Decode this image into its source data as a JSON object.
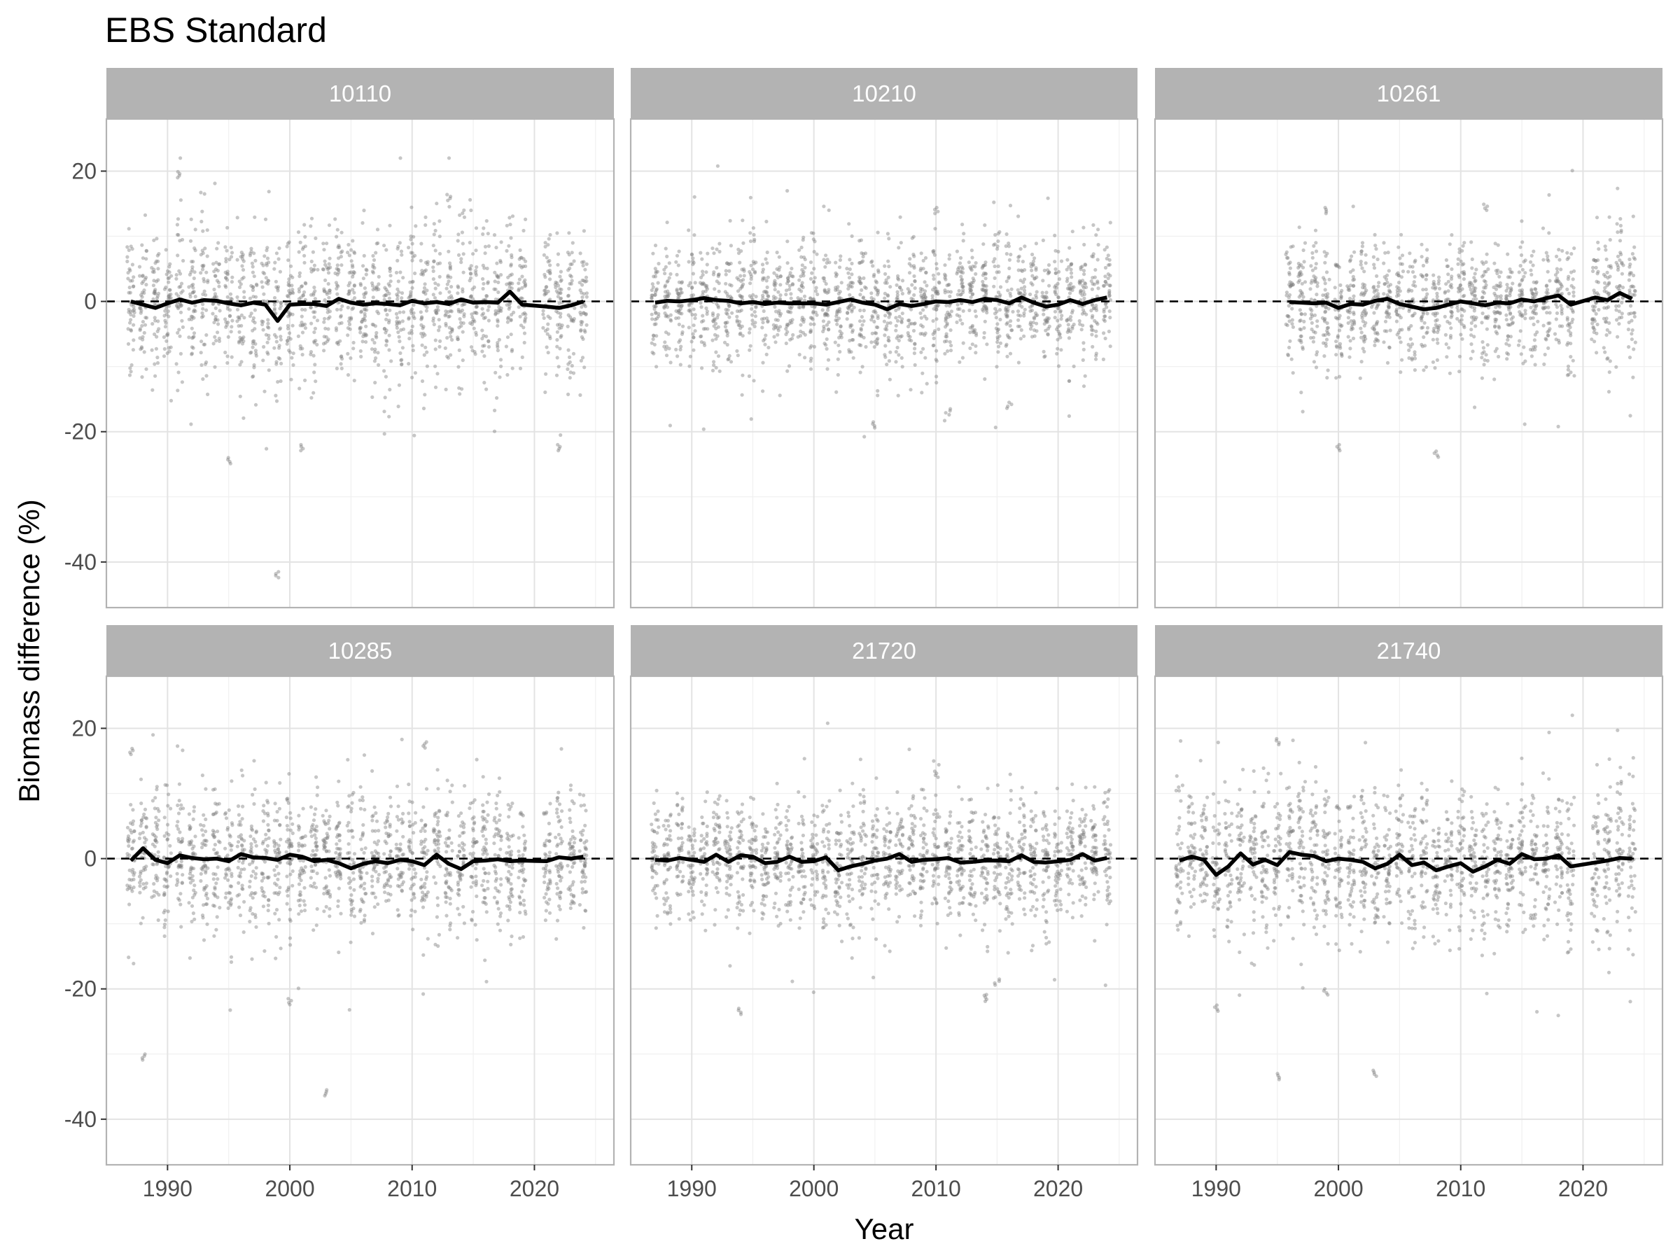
{
  "chart_data": {
    "type": "scatter",
    "title": "EBS Standard",
    "xlabel": "Year",
    "ylabel": "Biomass difference (%)",
    "xlim": [
      1985,
      2026.5
    ],
    "ylim": [
      -47,
      28
    ],
    "x_ticks": [
      1990,
      2000,
      2010,
      2020
    ],
    "y_ticks": [
      20,
      0,
      -20,
      -40
    ],
    "reference_line": {
      "y": 0,
      "style": "dashed"
    },
    "grid": true,
    "facet_layout": "2 rows x 3 columns",
    "point_color": "#808080",
    "line_color": "#000000",
    "panels": [
      {
        "label": "10110",
        "years": [
          1987,
          2024
        ],
        "missing_years": [
          2020
        ],
        "mean_series": {
          "x": [
            1987,
            1988,
            1989,
            1990,
            1991,
            1992,
            1993,
            1994,
            1995,
            1996,
            1997,
            1998,
            1999,
            2000,
            2001,
            2002,
            2003,
            2004,
            2005,
            2006,
            2007,
            2008,
            2009,
            2010,
            2011,
            2012,
            2013,
            2014,
            2015,
            2016,
            2017,
            2018,
            2019,
            2021,
            2022,
            2023,
            2024
          ],
          "y": [
            0,
            -0.5,
            -1,
            -0.3,
            0.3,
            -0.2,
            0.2,
            0.1,
            -0.3,
            -0.6,
            -0.2,
            -0.5,
            -3,
            -0.5,
            -0.4,
            -0.4,
            -0.7,
            0.4,
            -0.2,
            -0.5,
            -0.3,
            -0.4,
            -0.6,
            0.1,
            -0.3,
            -0.1,
            -0.4,
            0.3,
            -0.2,
            -0.1,
            -0.2,
            1.5,
            -0.5,
            -0.8,
            -1,
            -0.6,
            0
          ]
        },
        "points": {
          "spread": 5.5,
          "extremes": {
            "1999": -41.5,
            "1991": 19,
            "1995": -24,
            "2001": -22,
            "2013": 15.5,
            "2022": -22
          }
        }
      },
      {
        "label": "10210",
        "years": [
          1987,
          2024
        ],
        "missing_years": [],
        "mean_series": {
          "x": [
            1987,
            1988,
            1989,
            1990,
            1991,
            1992,
            1993,
            1994,
            1995,
            1996,
            1997,
            1998,
            1999,
            2000,
            2001,
            2002,
            2003,
            2004,
            2005,
            2006,
            2007,
            2008,
            2009,
            2010,
            2011,
            2012,
            2013,
            2014,
            2015,
            2016,
            2017,
            2018,
            2019,
            2020,
            2021,
            2022,
            2023,
            2024
          ],
          "y": [
            -0.2,
            0.1,
            0,
            0.2,
            0.5,
            0.2,
            0.1,
            -0.3,
            -0.1,
            -0.4,
            -0.2,
            -0.3,
            -0.3,
            -0.3,
            -0.5,
            -0.1,
            0.3,
            -0.2,
            -0.5,
            -1.2,
            -0.4,
            -0.7,
            -0.4,
            0,
            -0.1,
            0.2,
            -0.1,
            0.4,
            0.2,
            -0.3,
            0.6,
            -0.2,
            -0.8,
            -0.5,
            0.2,
            -0.4,
            0.2,
            0.6
          ]
        },
        "points": {
          "spread": 4.5,
          "extremes": {
            "2005": -18.5,
            "2010": 13.5,
            "2011": -16.5,
            "2016": -15.5
          }
        }
      },
      {
        "label": "10261",
        "years": [
          1996,
          2024
        ],
        "missing_years": [
          2020
        ],
        "mean_series": {
          "x": [
            1996,
            1997,
            1998,
            1999,
            2000,
            2001,
            2002,
            2003,
            2004,
            2005,
            2006,
            2007,
            2008,
            2009,
            2010,
            2011,
            2012,
            2013,
            2014,
            2015,
            2016,
            2017,
            2018,
            2019,
            2021,
            2022,
            2023,
            2024
          ],
          "y": [
            -0.1,
            -0.2,
            -0.3,
            -0.2,
            -1,
            -0.4,
            -0.5,
            0.1,
            0.4,
            -0.4,
            -0.8,
            -1.2,
            -1,
            -0.5,
            0,
            -0.3,
            -0.6,
            -0.2,
            -0.3,
            0.3,
            0,
            0.5,
            0.9,
            -0.5,
            0.6,
            0.2,
            1.3,
            0.4
          ]
        },
        "points": {
          "spread": 4.5,
          "extremes": {
            "2000": -22,
            "2008": -23,
            "2012": 14,
            "1999": 13.5
          }
        }
      },
      {
        "label": "10285",
        "years": [
          1987,
          2024
        ],
        "missing_years": [
          2020
        ],
        "mean_series": {
          "x": [
            1987,
            1988,
            1989,
            1990,
            1991,
            1992,
            1993,
            1994,
            1995,
            1996,
            1997,
            1998,
            1999,
            2000,
            2001,
            2002,
            2003,
            2004,
            2005,
            2006,
            2007,
            2008,
            2009,
            2010,
            2011,
            2012,
            2013,
            2014,
            2015,
            2016,
            2017,
            2018,
            2019,
            2021,
            2022,
            2023,
            2024
          ],
          "y": [
            -0.3,
            1.6,
            -0.2,
            -0.7,
            0.5,
            0.1,
            -0.1,
            0,
            -0.4,
            0.7,
            0.2,
            0.1,
            -0.2,
            0.6,
            0.3,
            -0.4,
            -0.2,
            -0.7,
            -1.5,
            -0.8,
            -0.4,
            -0.7,
            -0.2,
            -0.4,
            -1,
            0.6,
            -0.8,
            -1.6,
            -0.4,
            -0.3,
            -0.1,
            -0.4,
            -0.3,
            -0.4,
            0.2,
            0,
            0.3
          ]
        },
        "points": {
          "spread": 5,
          "extremes": {
            "1988": -30,
            "2003": -35.5,
            "2000": -21.5,
            "2011": 17,
            "1987": 16
          }
        }
      },
      {
        "label": "21720",
        "years": [
          1987,
          2024
        ],
        "missing_years": [],
        "mean_series": {
          "x": [
            1987,
            1988,
            1989,
            1990,
            1991,
            1992,
            1993,
            1994,
            1995,
            1996,
            1997,
            1998,
            1999,
            2000,
            2001,
            2002,
            2003,
            2004,
            2005,
            2006,
            2007,
            2008,
            2009,
            2010,
            2011,
            2012,
            2013,
            2014,
            2015,
            2016,
            2017,
            2018,
            2019,
            2020,
            2021,
            2022,
            2023,
            2024
          ],
          "y": [
            -0.2,
            -0.3,
            0.1,
            -0.2,
            -0.5,
            0.6,
            -0.5,
            0.5,
            0.3,
            -0.7,
            -0.5,
            0.3,
            -0.5,
            -0.4,
            0.2,
            -1.8,
            -1.2,
            -0.8,
            -0.3,
            0,
            0.7,
            -0.5,
            -0.2,
            -0.1,
            0.1,
            -0.6,
            -0.5,
            -0.3,
            -0.3,
            -0.4,
            0.5,
            -0.5,
            -0.6,
            -0.4,
            -0.2,
            0.7,
            -0.3,
            0.1
          ]
        },
        "points": {
          "spread": 4.5,
          "extremes": {
            "1994": -23,
            "2014": -21,
            "2010": 12.5,
            "2015": -18.5
          }
        }
      },
      {
        "label": "21740",
        "years": [
          1987,
          2024
        ],
        "missing_years": [
          2020
        ],
        "mean_series": {
          "x": [
            1987,
            1988,
            1989,
            1990,
            1991,
            1992,
            1993,
            1994,
            1995,
            1996,
            1997,
            1998,
            1999,
            2000,
            2001,
            2002,
            2003,
            2004,
            2005,
            2006,
            2007,
            2008,
            2009,
            2010,
            2011,
            2012,
            2013,
            2014,
            2015,
            2016,
            2017,
            2018,
            2019,
            2021,
            2022,
            2023,
            2024
          ],
          "y": [
            -0.3,
            0.3,
            -0.2,
            -2.5,
            -1.2,
            0.8,
            -0.9,
            -0.2,
            -1,
            1,
            0.6,
            0.4,
            -0.4,
            0,
            -0.2,
            -0.5,
            -1.5,
            -0.8,
            0.6,
            -1,
            -0.6,
            -1.8,
            -1.2,
            -0.7,
            -2,
            -1.2,
            -0.2,
            -0.8,
            0.7,
            -0.1,
            0,
            0.5,
            -1.2,
            -0.6,
            -0.3,
            0.1,
            0
          ]
        },
        "points": {
          "spread": 5.5,
          "extremes": {
            "1995": -33,
            "2003": -32.5,
            "1990": -22.5,
            "1995_high": 17.5,
            "1999": -20
          }
        }
      }
    ]
  }
}
